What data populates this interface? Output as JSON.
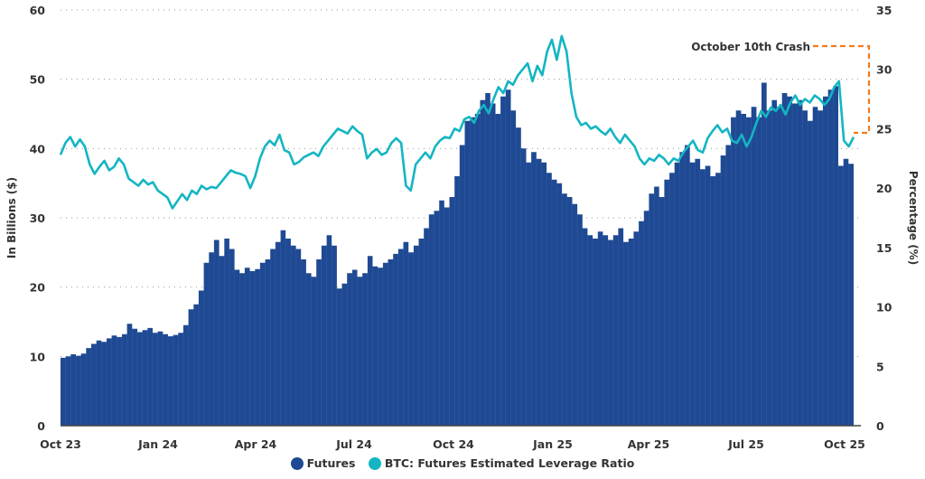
{
  "chart_data": {
    "type": "bar+line",
    "title": "",
    "xlabel": "",
    "ylabel": "In Billions ($)",
    "ylabel_right": "Percentage (%)",
    "ylim": [
      0,
      60
    ],
    "ylim_right": [
      0,
      35
    ],
    "y_ticks": [
      0,
      10,
      20,
      30,
      40,
      50,
      60
    ],
    "y_ticks_right": [
      0,
      5,
      10,
      15,
      20,
      25,
      30,
      35
    ],
    "x_ticks": [
      "Oct 23",
      "Jan 24",
      "Apr 24",
      "Jul 24",
      "Oct 24",
      "Jan 25",
      "Apr 25",
      "Jul 25",
      "Oct 25"
    ],
    "grid": "horizontal dotted",
    "legend_position": "bottom",
    "colors": {
      "futures": "#1f4a93",
      "leverage": "#14b5c3",
      "annotation": "#f27b1c"
    },
    "annotation": {
      "text": "October 10th Crash"
    },
    "series": [
      {
        "name": "Futures",
        "type": "bar",
        "axis": "left",
        "values": [
          9.8,
          10.0,
          10.3,
          10.1,
          10.4,
          11.2,
          11.8,
          12.3,
          12.1,
          12.6,
          13.0,
          12.8,
          13.2,
          14.7,
          14.0,
          13.5,
          13.8,
          14.1,
          13.4,
          13.6,
          13.2,
          12.9,
          13.1,
          13.4,
          14.5,
          16.8,
          17.5,
          19.5,
          23.5,
          25.0,
          26.8,
          24.5,
          27.0,
          25.5,
          22.5,
          22.0,
          22.8,
          22.3,
          22.6,
          23.5,
          24.0,
          25.5,
          26.5,
          28.2,
          27.0,
          26.0,
          25.5,
          24.0,
          22.0,
          21.5,
          24.0,
          26.0,
          27.5,
          26.0,
          19.8,
          20.5,
          22.0,
          22.5,
          21.5,
          22.0,
          24.5,
          23.0,
          22.8,
          23.5,
          24.0,
          24.8,
          25.5,
          26.5,
          25.0,
          26.0,
          27.0,
          28.5,
          30.5,
          31.0,
          32.5,
          31.5,
          33.0,
          36.0,
          40.5,
          44.0,
          44.5,
          45.0,
          47.0,
          48.0,
          46.5,
          45.0,
          47.5,
          48.5,
          45.5,
          43.0,
          40.0,
          38.0,
          39.5,
          38.5,
          38.0,
          36.5,
          35.5,
          35.0,
          33.5,
          33.0,
          32.0,
          30.5,
          28.5,
          27.5,
          27.0,
          28.0,
          27.5,
          26.8,
          27.5,
          28.5,
          26.5,
          27.0,
          28.0,
          29.5,
          31.0,
          33.5,
          34.5,
          33.0,
          35.5,
          36.5,
          38.0,
          39.5,
          40.5,
          38.0,
          38.5,
          37.0,
          37.5,
          36.0,
          36.5,
          39.0,
          40.5,
          44.5,
          45.5,
          45.0,
          44.5,
          46.0,
          44.5,
          49.5,
          45.5,
          47.0,
          46.0,
          48.0,
          47.5,
          46.5,
          47.0,
          45.5,
          44.0,
          46.0,
          45.5,
          47.5,
          48.5,
          49.0,
          37.5,
          38.5,
          37.8
        ]
      },
      {
        "name": "BTC: Futures Estimated Leverage Ratio",
        "type": "line",
        "axis": "right",
        "values": [
          22.8,
          23.8,
          24.3,
          23.5,
          24.1,
          23.5,
          22.0,
          21.2,
          21.8,
          22.3,
          21.5,
          21.8,
          22.5,
          22.0,
          20.8,
          20.5,
          20.2,
          20.7,
          20.3,
          20.5,
          19.8,
          19.5,
          19.2,
          18.3,
          18.9,
          19.5,
          19.0,
          19.8,
          19.5,
          20.2,
          19.9,
          20.1,
          20.0,
          20.5,
          21.0,
          21.5,
          21.3,
          21.2,
          21.0,
          20.0,
          21.0,
          22.5,
          23.5,
          24.0,
          23.6,
          24.5,
          23.2,
          23.0,
          22.0,
          22.2,
          22.6,
          22.8,
          23.0,
          22.7,
          23.5,
          24.0,
          24.5,
          25.0,
          24.8,
          24.6,
          25.2,
          24.8,
          24.5,
          22.5,
          23.0,
          23.3,
          22.8,
          23.0,
          23.8,
          24.2,
          23.8,
          20.2,
          19.8,
          22.0,
          22.5,
          23.0,
          22.5,
          23.5,
          24.0,
          24.3,
          24.2,
          25.0,
          24.8,
          25.8,
          26.0,
          25.5,
          26.5,
          27.0,
          26.3,
          27.5,
          28.5,
          28.0,
          29.0,
          28.7,
          29.5,
          30.0,
          30.5,
          29.0,
          30.3,
          29.5,
          31.5,
          32.5,
          30.8,
          32.8,
          31.5,
          28.0,
          26.0,
          25.3,
          25.5,
          25.0,
          25.2,
          24.8,
          24.5,
          25.0,
          24.3,
          23.8,
          24.5,
          24.0,
          23.5,
          22.5,
          22.0,
          22.5,
          22.3,
          22.8,
          22.5,
          22.0,
          22.5,
          22.3,
          23.0,
          23.5,
          24.0,
          23.2,
          23.0,
          24.2,
          24.8,
          25.3,
          24.7,
          25.0,
          24.0,
          23.8,
          24.5,
          23.5,
          24.3,
          25.5,
          26.5,
          26.0,
          26.8,
          26.5,
          27.0,
          26.2,
          27.2,
          27.8,
          27.0,
          27.5,
          27.2,
          27.8,
          27.5,
          27.0,
          27.5,
          28.5,
          29.0,
          24.0,
          23.5,
          24.3
        ]
      }
    ]
  },
  "legend": {
    "items": [
      {
        "label": "Futures",
        "color": "#1f4a93"
      },
      {
        "label": "BTC: Futures Estimated Leverage Ratio",
        "color": "#14b5c3"
      }
    ]
  }
}
